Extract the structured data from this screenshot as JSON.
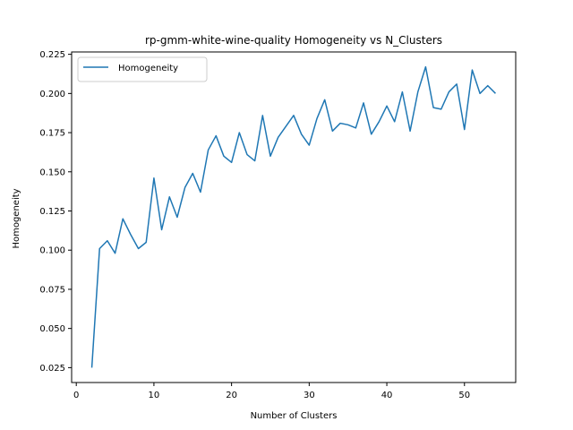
{
  "chart_data": {
    "type": "line",
    "title": "rp-gmm-white-wine-quality Homogeneity vs N_Clusters",
    "xlabel": "Number of Clusters",
    "ylabel": "Homogeneity",
    "xlim": [
      -0.6,
      56.6
    ],
    "ylim": [
      0.0155,
      0.2265
    ],
    "xticks": [
      0,
      10,
      20,
      30,
      40,
      50
    ],
    "yticks": [
      0.025,
      0.05,
      0.075,
      0.1,
      0.125,
      0.15,
      0.175,
      0.2,
      0.225
    ],
    "ytick_labels": [
      "0.025",
      "0.050",
      "0.075",
      "0.100",
      "0.125",
      "0.150",
      "0.175",
      "0.200",
      "0.225"
    ],
    "grid": false,
    "legend": "upper-left",
    "series": [
      {
        "name": "Homogeneity",
        "color": "#1f77b4",
        "x": [
          2,
          3,
          4,
          5,
          6,
          7,
          8,
          9,
          10,
          11,
          12,
          13,
          14,
          15,
          16,
          17,
          18,
          19,
          20,
          21,
          22,
          23,
          24,
          25,
          26,
          27,
          28,
          29,
          30,
          31,
          32,
          33,
          34,
          35,
          36,
          37,
          38,
          39,
          40,
          41,
          42,
          43,
          44,
          45,
          46,
          47,
          48,
          49,
          50,
          51,
          52,
          53,
          54
        ],
        "values": [
          0.025,
          0.101,
          0.106,
          0.098,
          0.12,
          0.11,
          0.101,
          0.105,
          0.146,
          0.113,
          0.134,
          0.121,
          0.14,
          0.149,
          0.137,
          0.164,
          0.173,
          0.16,
          0.156,
          0.175,
          0.161,
          0.157,
          0.186,
          0.16,
          0.172,
          0.179,
          0.186,
          0.174,
          0.167,
          0.184,
          0.196,
          0.176,
          0.181,
          0.18,
          0.178,
          0.194,
          0.174,
          0.182,
          0.192,
          0.182,
          0.201,
          0.176,
          0.201,
          0.217,
          0.191,
          0.19,
          0.201,
          0.206,
          0.177,
          0.215,
          0.2,
          0.205,
          0.2
        ]
      }
    ]
  }
}
